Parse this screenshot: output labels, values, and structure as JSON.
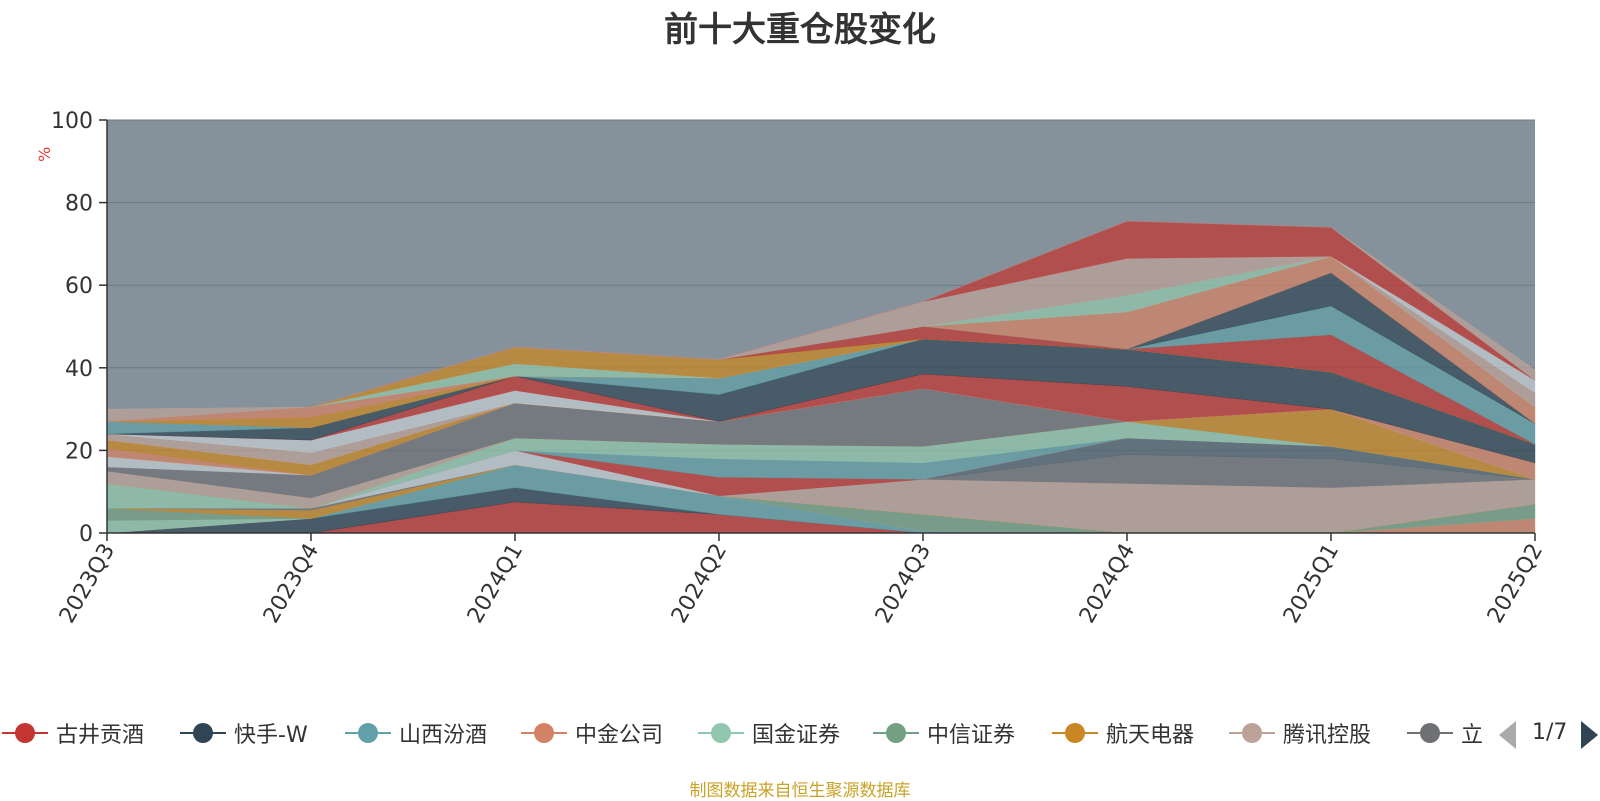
{
  "title": "前十大重仓股变化",
  "footer": "制图数据来自恒生聚源数据库",
  "legend_page": "1/7",
  "legend_items": [
    {
      "name": "古井贡酒",
      "color": "#c23531"
    },
    {
      "name": "快手-W",
      "color": "#2f4554"
    },
    {
      "name": "山西汾酒",
      "color": "#61a0a8"
    },
    {
      "name": "中金公司",
      "color": "#d48265"
    },
    {
      "name": "国金证券",
      "color": "#91c7ae"
    },
    {
      "name": "中信证券",
      "color": "#749f83"
    },
    {
      "name": "航天电器",
      "color": "#ca8622"
    },
    {
      "name": "腾讯控股",
      "color": "#bda29a"
    },
    {
      "name": "立",
      "color": "#6e7074"
    }
  ],
  "chart_data": {
    "type": "area",
    "stacked": true,
    "title": "前十大重仓股变化",
    "ylabel": "%",
    "ylim": [
      0,
      100
    ],
    "yticks": [
      0,
      20,
      40,
      60,
      80,
      100
    ],
    "categories": [
      "2023Q3",
      "2023Q4",
      "2024Q1",
      "2024Q2",
      "2024Q3",
      "2024Q4",
      "2025Q1",
      "2025Q2"
    ],
    "series": [
      {
        "color": "#c23531",
        "values": [
          0,
          0,
          7.5,
          4.5,
          0,
          0,
          0,
          0
        ]
      },
      {
        "color": "#2f4554",
        "values": [
          0,
          3.5,
          3.5,
          0,
          0,
          0,
          0,
          0
        ]
      },
      {
        "color": "#61a0a8",
        "values": [
          0,
          0,
          5.5,
          4.5,
          0.5,
          0,
          0,
          0
        ]
      },
      {
        "color": "#d48265",
        "values": [
          0,
          0,
          0,
          0,
          0,
          0,
          0,
          3.5
        ]
      },
      {
        "color": "#91c7ae",
        "values": [
          3,
          0,
          0,
          0,
          0,
          0,
          0,
          0
        ]
      },
      {
        "color": "#749f83",
        "values": [
          3,
          0,
          0,
          0,
          4,
          0,
          0,
          3.5
        ]
      },
      {
        "color": "#ca8622",
        "values": [
          0,
          2,
          0,
          0,
          0,
          0,
          0,
          0
        ]
      },
      {
        "color": "#bda29a",
        "values": [
          0,
          0,
          0,
          0,
          8.5,
          12,
          11,
          6
        ]
      },
      {
        "color": "#6e7074",
        "values": [
          0,
          0.5,
          0,
          0,
          0,
          7,
          7,
          0
        ]
      },
      {
        "color": "#546570",
        "values": [
          0,
          0,
          0,
          0,
          0,
          4,
          3,
          0
        ]
      },
      {
        "color": "#c4ccd3",
        "values": [
          0,
          0,
          3.5,
          0,
          0,
          0,
          0,
          0
        ]
      },
      {
        "color": "#c23531",
        "values": [
          0,
          0,
          0,
          4.5,
          0,
          0,
          0,
          0
        ]
      },
      {
        "color": "#61a0a8",
        "values": [
          0,
          0,
          0,
          4.5,
          4,
          0,
          0,
          0
        ]
      },
      {
        "color": "#91c7ae",
        "values": [
          6,
          0,
          3,
          3.5,
          4,
          4,
          0,
          0
        ]
      },
      {
        "color": "#749f83",
        "values": [
          0,
          0,
          0,
          0,
          0,
          0,
          0,
          0
        ]
      },
      {
        "color": "#ca8622",
        "values": [
          0,
          0,
          0,
          0,
          0,
          0,
          9,
          0
        ]
      },
      {
        "color": "#bda29a",
        "values": [
          3,
          2.5,
          0,
          0,
          0,
          0,
          0,
          0
        ]
      },
      {
        "color": "#6e7074",
        "values": [
          1,
          5.5,
          8.5,
          5.5,
          14,
          0,
          0,
          0
        ]
      },
      {
        "color": "#c4ccd3",
        "values": [
          2.5,
          0,
          0,
          0,
          0,
          0,
          0,
          0
        ]
      },
      {
        "color": "#d48265",
        "values": [
          2,
          0,
          0,
          0,
          0,
          0,
          0,
          4
        ]
      },
      {
        "color": "#ca8622",
        "values": [
          2,
          2.5,
          0,
          0,
          0,
          0,
          0,
          0
        ]
      },
      {
        "color": "#bda29a",
        "values": [
          1.5,
          3,
          0,
          0,
          0,
          0,
          0,
          0
        ]
      },
      {
        "color": "#c4ccd3",
        "values": [
          0,
          3,
          3,
          0,
          0,
          0,
          0,
          0
        ]
      },
      {
        "color": "#c23531",
        "values": [
          0,
          0,
          3.5,
          0,
          3.5,
          8.5,
          0,
          0
        ]
      },
      {
        "color": "#2f4554",
        "values": [
          0,
          3,
          0,
          6.5,
          8.5,
          9,
          9,
          4.5
        ]
      },
      {
        "color": "#61a0a8",
        "values": [
          3,
          0,
          0,
          4,
          0,
          0,
          0,
          0
        ]
      },
      {
        "color": "#ca8622",
        "values": [
          0,
          2.5,
          0,
          0,
          0,
          0,
          0,
          0
        ]
      },
      {
        "color": "#d48265",
        "values": [
          0,
          2.5,
          0,
          0,
          0,
          0,
          0,
          0
        ]
      },
      {
        "color": "#91c7ae",
        "values": [
          0,
          0,
          3,
          0,
          0,
          0,
          0,
          0
        ]
      },
      {
        "color": "#ca8622",
        "values": [
          0,
          0,
          4,
          4.5,
          0,
          0,
          0,
          0
        ]
      },
      {
        "color": "#c23531",
        "values": [
          0,
          0,
          0,
          0,
          3,
          0,
          9,
          0
        ]
      },
      {
        "color": "#61a0a8",
        "values": [
          0,
          0,
          0,
          0,
          0,
          0,
          7,
          5
        ]
      },
      {
        "color": "#2f4554",
        "values": [
          0,
          0,
          0,
          0,
          0,
          0,
          8,
          0
        ]
      },
      {
        "color": "#d48265",
        "values": [
          0,
          0,
          0,
          0,
          0,
          9,
          4,
          4
        ]
      },
      {
        "color": "#91c7ae",
        "values": [
          0,
          0,
          0,
          0,
          0,
          4,
          0,
          0
        ]
      },
      {
        "color": "#bda29a",
        "values": [
          0,
          0,
          0,
          0,
          6,
          9,
          0,
          3.5
        ]
      },
      {
        "color": "#c4ccd3",
        "values": [
          0,
          0,
          0,
          0,
          0,
          0,
          0,
          3
        ]
      },
      {
        "color": "#c23531",
        "values": [
          0,
          0,
          0,
          0,
          0,
          9,
          7,
          0
        ]
      },
      {
        "color": "#bda29a",
        "values": [
          3,
          0,
          0,
          0,
          0,
          0,
          0,
          2.5
        ]
      }
    ]
  }
}
